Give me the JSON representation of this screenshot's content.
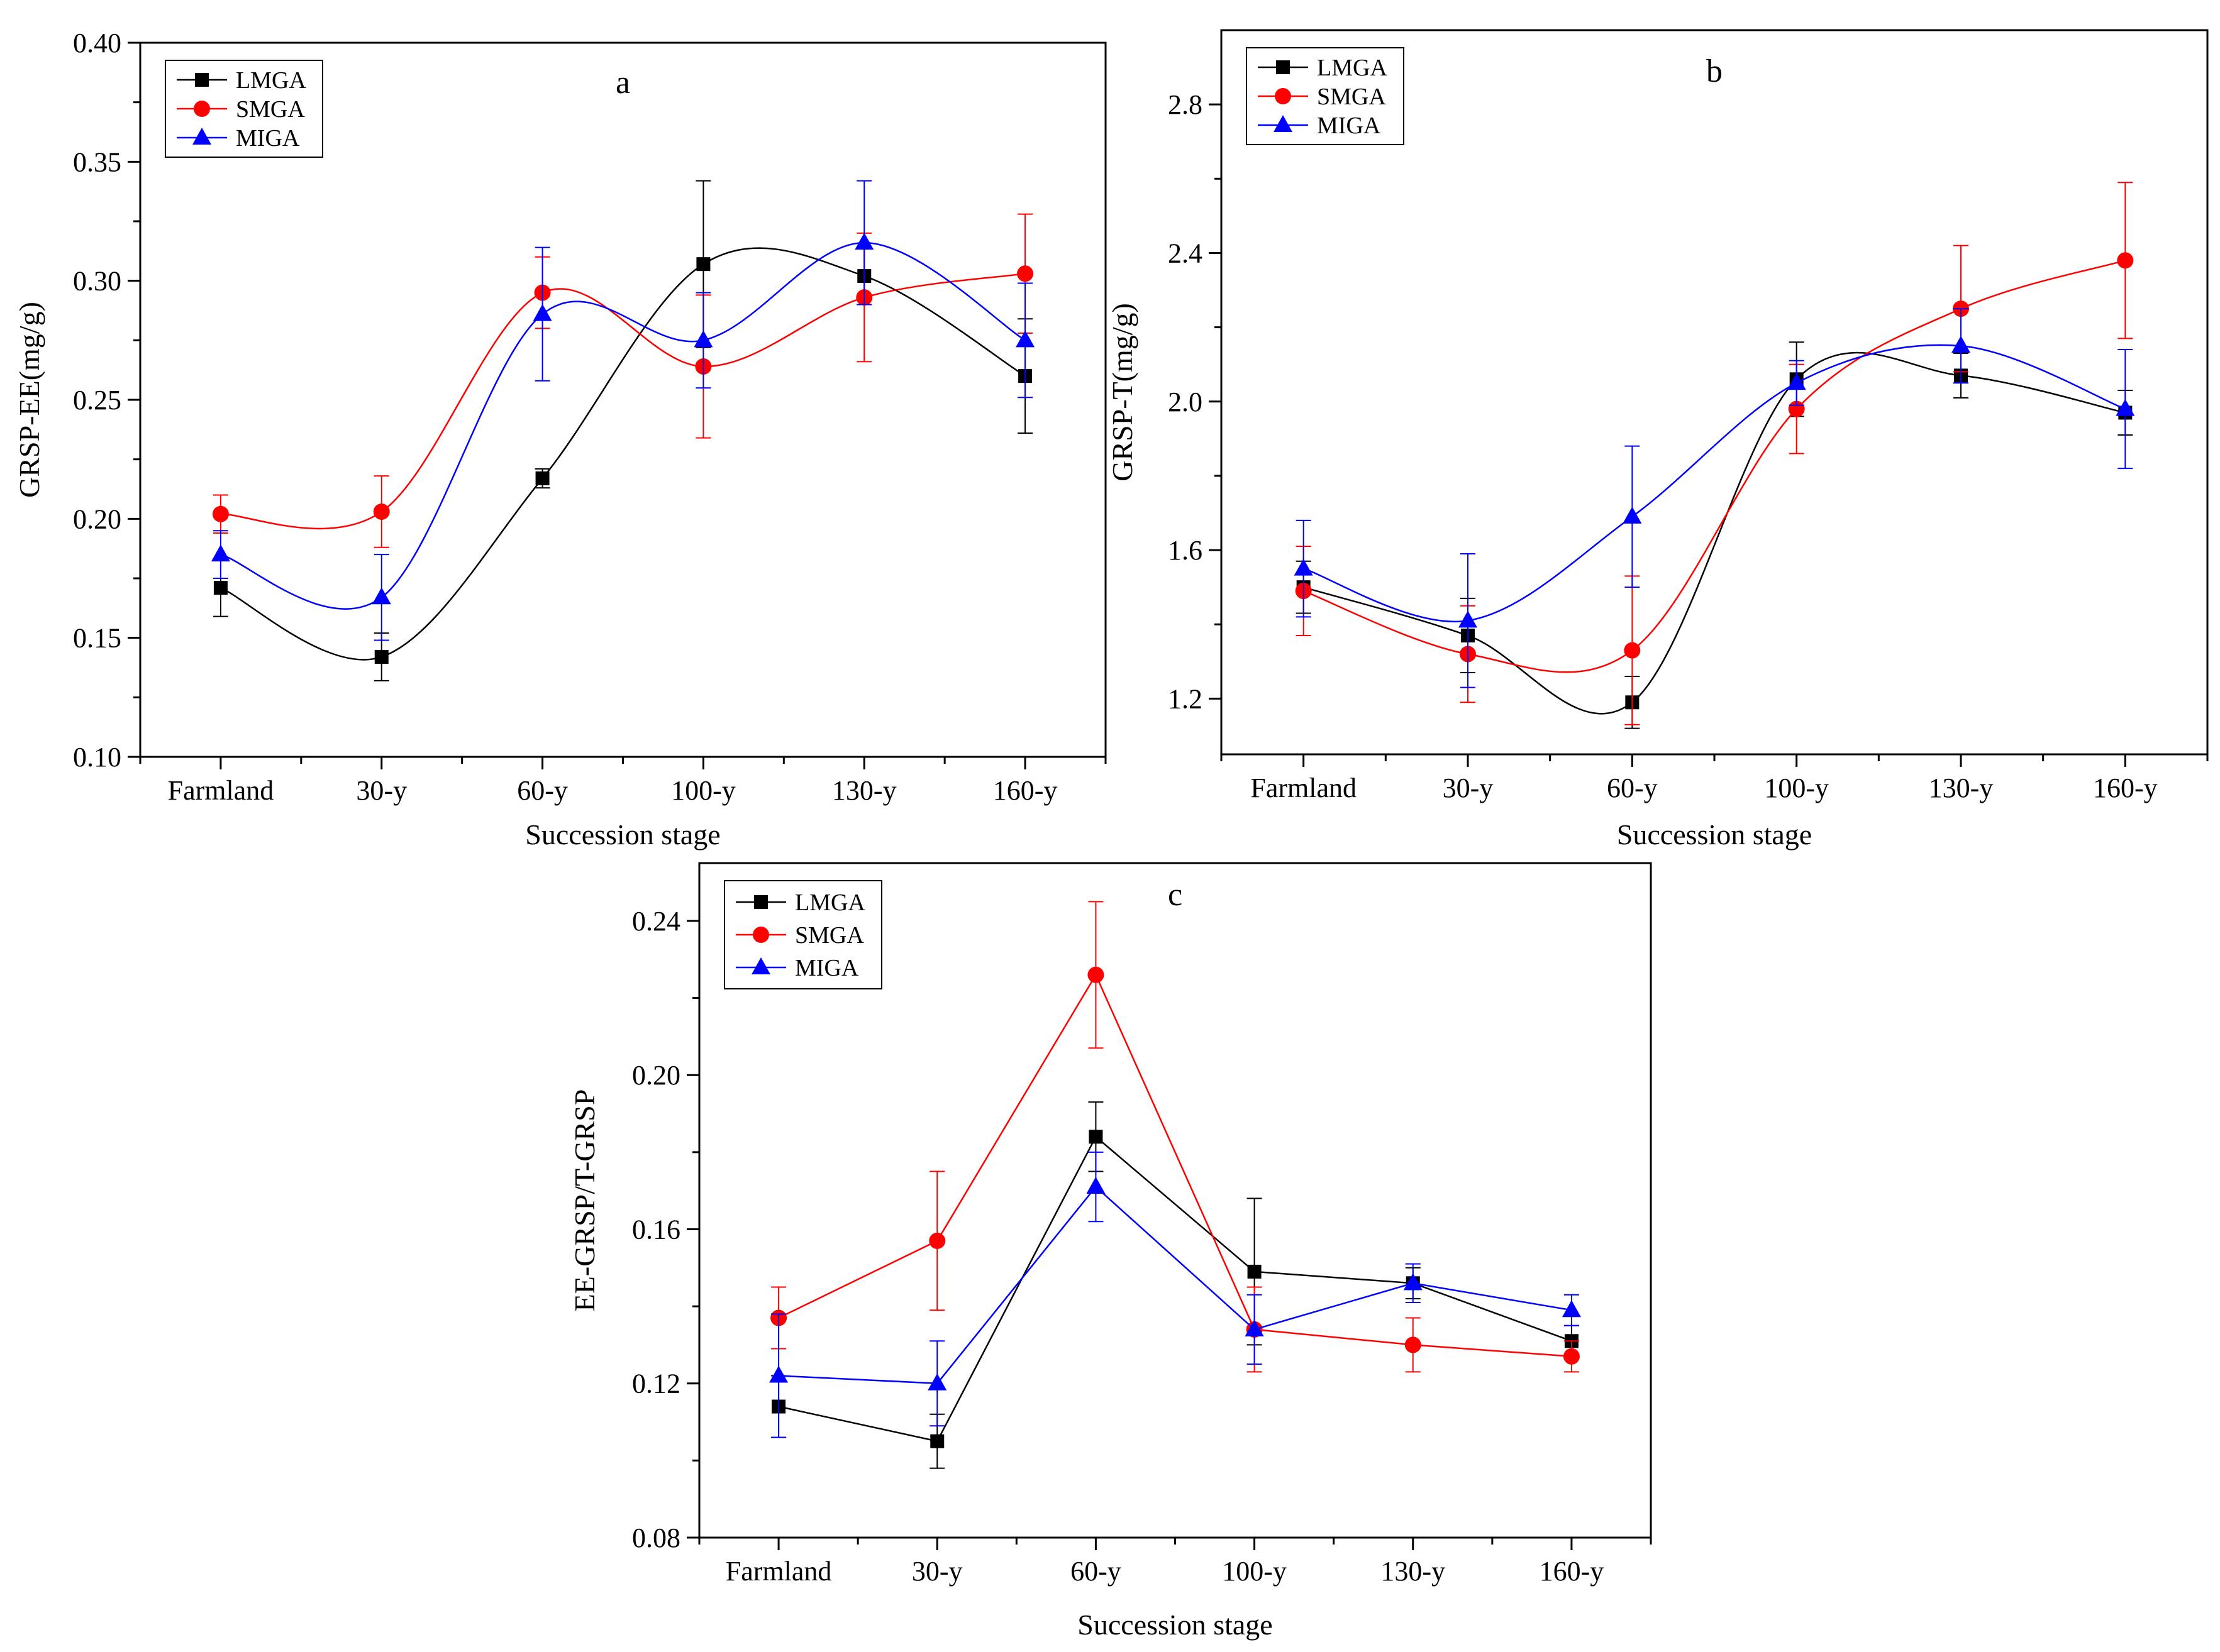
{
  "figure": {
    "legend_entries": [
      "LMGA",
      "SMGA",
      "MIGA"
    ]
  },
  "colors": {
    "LMGA": "#000000",
    "SMGA": "#ff0000",
    "MIGA": "#0000ff"
  },
  "chart_data": [
    {
      "id": "a",
      "type": "line",
      "title": "a",
      "xlabel": "Succession stage",
      "ylabel": "GRSP-EE(mg/g)",
      "categories": [
        "Farmland",
        "30-y",
        "60-y",
        "100-y",
        "130-y",
        "160-y"
      ],
      "ylim": [
        0.1,
        0.4
      ],
      "yticks": [
        0.1,
        0.15,
        0.2,
        0.25,
        0.3,
        0.35,
        0.4
      ],
      "ytick_labels": [
        "0.10",
        "0.15",
        "0.20",
        "0.25",
        "0.30",
        "0.35",
        "0.40"
      ],
      "minor_yticks": true,
      "fit": "smooth",
      "legend": "top-left",
      "series": [
        {
          "name": "LMGA",
          "marker": "square",
          "values": [
            0.171,
            0.142,
            0.217,
            0.307,
            0.302,
            0.26
          ],
          "errors": [
            0.012,
            0.01,
            0.004,
            0.035,
            0.012,
            0.024
          ]
        },
        {
          "name": "SMGA",
          "marker": "circle",
          "values": [
            0.202,
            0.203,
            0.295,
            0.264,
            0.293,
            0.303
          ],
          "errors": [
            0.008,
            0.015,
            0.015,
            0.03,
            0.027,
            0.025
          ]
        },
        {
          "name": "MIGA",
          "marker": "triangle",
          "values": [
            0.185,
            0.167,
            0.286,
            0.275,
            0.316,
            0.275
          ],
          "errors": [
            0.01,
            0.018,
            0.028,
            0.02,
            0.026,
            0.024
          ]
        }
      ]
    },
    {
      "id": "b",
      "type": "line",
      "title": "b",
      "xlabel": "Succession stage",
      "ylabel": "GRSP-T(mg/g)",
      "categories": [
        "Farmland",
        "30-y",
        "60-y",
        "100-y",
        "130-y",
        "160-y"
      ],
      "ylim": [
        1.05,
        3.0
      ],
      "yticks": [
        1.2,
        1.6,
        2.0,
        2.4,
        2.8
      ],
      "ytick_labels": [
        "1.2",
        "1.6",
        "2.0",
        "2.4",
        "2.8"
      ],
      "minor_yticks": true,
      "fit": "smooth",
      "legend": "top-left",
      "series": [
        {
          "name": "LMGA",
          "marker": "square",
          "values": [
            1.5,
            1.37,
            1.19,
            2.06,
            2.07,
            1.97
          ],
          "errors": [
            0.07,
            0.1,
            0.07,
            0.1,
            0.06,
            0.06
          ]
        },
        {
          "name": "SMGA",
          "marker": "circle",
          "values": [
            1.49,
            1.32,
            1.33,
            1.98,
            2.25,
            2.38
          ],
          "errors": [
            0.12,
            0.13,
            0.2,
            0.12,
            0.17,
            0.21
          ]
        },
        {
          "name": "MIGA",
          "marker": "triangle",
          "values": [
            1.55,
            1.41,
            1.69,
            2.05,
            2.15,
            1.98
          ],
          "errors": [
            0.13,
            0.18,
            0.19,
            0.06,
            0.1,
            0.16
          ]
        }
      ]
    },
    {
      "id": "c",
      "type": "line",
      "title": "c",
      "xlabel": "Succession stage",
      "ylabel": "EE-GRSP/T-GRSP",
      "categories": [
        "Farmland",
        "30-y",
        "60-y",
        "100-y",
        "130-y",
        "160-y"
      ],
      "ylim": [
        0.08,
        0.255
      ],
      "yticks": [
        0.08,
        0.12,
        0.16,
        0.2,
        0.24
      ],
      "ytick_labels": [
        "0.08",
        "0.12",
        "0.16",
        "0.20",
        "0.24"
      ],
      "minor_yticks": true,
      "fit": "straight",
      "legend": "top-left",
      "series": [
        {
          "name": "LMGA",
          "marker": "square",
          "values": [
            0.114,
            0.105,
            0.184,
            0.149,
            0.146,
            0.131
          ],
          "errors": [
            0.008,
            0.007,
            0.009,
            0.019,
            0.004,
            0.004
          ]
        },
        {
          "name": "SMGA",
          "marker": "circle",
          "values": [
            0.137,
            0.157,
            0.226,
            0.134,
            0.13,
            0.127
          ],
          "errors": [
            0.008,
            0.018,
            0.019,
            0.011,
            0.007,
            0.004
          ]
        },
        {
          "name": "MIGA",
          "marker": "triangle",
          "values": [
            0.122,
            0.12,
            0.171,
            0.134,
            0.146,
            0.139
          ],
          "errors": [
            0.016,
            0.011,
            0.009,
            0.009,
            0.005,
            0.004
          ]
        }
      ]
    }
  ]
}
